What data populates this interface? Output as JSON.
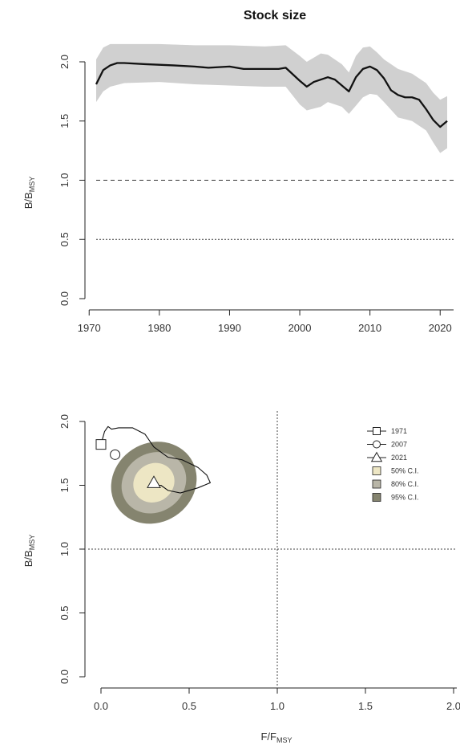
{
  "chart_data": [
    {
      "type": "line",
      "title": "Stock size",
      "ylabel": "B/BMSY",
      "ylabel_main": "B/B",
      "ylabel_sub": "MSY",
      "xlim": [
        1970,
        2021
      ],
      "ylim": [
        0,
        2.1
      ],
      "x_ticks": [
        "1970",
        "1980",
        "1990",
        "2000",
        "2010",
        "2020"
      ],
      "y_ticks": [
        "0.0",
        "0.5",
        "1.0",
        "1.5",
        "2.0"
      ],
      "reference_lines": [
        {
          "y": 1.0,
          "style": "dashed"
        },
        {
          "y": 0.5,
          "style": "dotted"
        }
      ],
      "series": [
        {
          "x": [
            1971,
            1972,
            1973,
            1974,
            1975,
            1978,
            1982,
            1985,
            1987,
            1990,
            1992,
            1995,
            1997,
            1998,
            2000,
            2001,
            2002,
            2004,
            2005,
            2006,
            2007,
            2008,
            2009,
            2010,
            2011,
            2012,
            2013,
            2014,
            2015,
            2016,
            2017,
            2018,
            2019,
            2020,
            2021
          ],
          "y": [
            1.81,
            1.93,
            1.97,
            1.99,
            1.99,
            1.98,
            1.97,
            1.96,
            1.95,
            1.96,
            1.94,
            1.94,
            1.94,
            1.95,
            1.84,
            1.79,
            1.83,
            1.87,
            1.85,
            1.8,
            1.75,
            1.87,
            1.94,
            1.96,
            1.93,
            1.86,
            1.76,
            1.72,
            1.7,
            1.7,
            1.68,
            1.6,
            1.51,
            1.45,
            1.5
          ]
        }
      ],
      "band": {
        "x": [
          1971,
          1972,
          1973,
          1975,
          1980,
          1985,
          1990,
          1995,
          1998,
          2000,
          2001,
          2003,
          2004,
          2006,
          2007,
          2008,
          2009,
          2010,
          2011,
          2012,
          2014,
          2016,
          2018,
          2019,
          2020,
          2021
        ],
        "upper": [
          2.02,
          2.12,
          2.15,
          2.15,
          2.15,
          2.14,
          2.14,
          2.13,
          2.14,
          2.05,
          2.0,
          2.07,
          2.06,
          1.98,
          1.91,
          2.05,
          2.12,
          2.13,
          2.08,
          2.02,
          1.94,
          1.9,
          1.82,
          1.74,
          1.68,
          1.71
        ],
        "lower": [
          1.66,
          1.75,
          1.79,
          1.82,
          1.83,
          1.81,
          1.8,
          1.79,
          1.79,
          1.64,
          1.59,
          1.62,
          1.66,
          1.62,
          1.56,
          1.63,
          1.7,
          1.73,
          1.72,
          1.66,
          1.53,
          1.5,
          1.42,
          1.32,
          1.23,
          1.27
        ]
      }
    },
    {
      "type": "scatter",
      "xlabel": "F/FMSY",
      "xlabel_main": "F/F",
      "xlabel_sub": "MSY",
      "ylabel": "B/BMSY",
      "ylabel_main": "B/B",
      "ylabel_sub": "MSY",
      "xlim": [
        0,
        2
      ],
      "ylim": [
        0,
        2
      ],
      "x_ticks": [
        "0.0",
        "0.5",
        "1.0",
        "1.5",
        "2.0"
      ],
      "y_ticks": [
        "0.0",
        "0.5",
        "1.0",
        "1.5",
        "2.0"
      ],
      "reference_lines": [
        {
          "y": 1.0,
          "style": "dotted"
        },
        {
          "x": 1.0,
          "style": "dotted"
        }
      ],
      "trajectory": {
        "x": [
          0.0,
          0.02,
          0.04,
          0.06,
          0.1,
          0.18,
          0.25,
          0.3,
          0.38,
          0.46,
          0.55,
          0.6,
          0.62,
          0.55,
          0.45,
          0.38,
          0.34,
          0.3
        ],
        "y": [
          1.82,
          1.92,
          1.96,
          1.94,
          1.95,
          1.95,
          1.9,
          1.8,
          1.72,
          1.7,
          1.64,
          1.58,
          1.52,
          1.48,
          1.44,
          1.46,
          1.5,
          1.5
        ]
      },
      "markers": [
        {
          "label": "1971",
          "shape": "square",
          "x": 0.0,
          "y": 1.82
        },
        {
          "label": "2007",
          "shape": "circle",
          "x": 0.08,
          "y": 1.74
        },
        {
          "label": "2021",
          "shape": "triangle",
          "x": 0.3,
          "y": 1.52
        }
      ],
      "ellipse": {
        "cx": 0.3,
        "cy": 1.52,
        "rx": [
          0.25,
          0.19,
          0.12
        ],
        "ry": [
          0.31,
          0.23,
          0.15
        ],
        "angle_deg": 33
      },
      "legend": {
        "position": "top-right",
        "entries": [
          {
            "label": "1971",
            "symbol": "square"
          },
          {
            "label": "2007",
            "symbol": "circle"
          },
          {
            "label": "2021",
            "symbol": "triangle"
          },
          {
            "label": "50% C.I.",
            "fill": "#ede6c4"
          },
          {
            "label": "80% C.I.",
            "fill": "#b9b6a8"
          },
          {
            "label": "95% C.I.",
            "fill": "#85846f"
          }
        ]
      }
    }
  ],
  "colors": {
    "band": "#d0d0d0",
    "line": "#111111",
    "ci50": "#ede6c4",
    "ci80": "#b9b6a8",
    "ci95": "#85846f"
  }
}
